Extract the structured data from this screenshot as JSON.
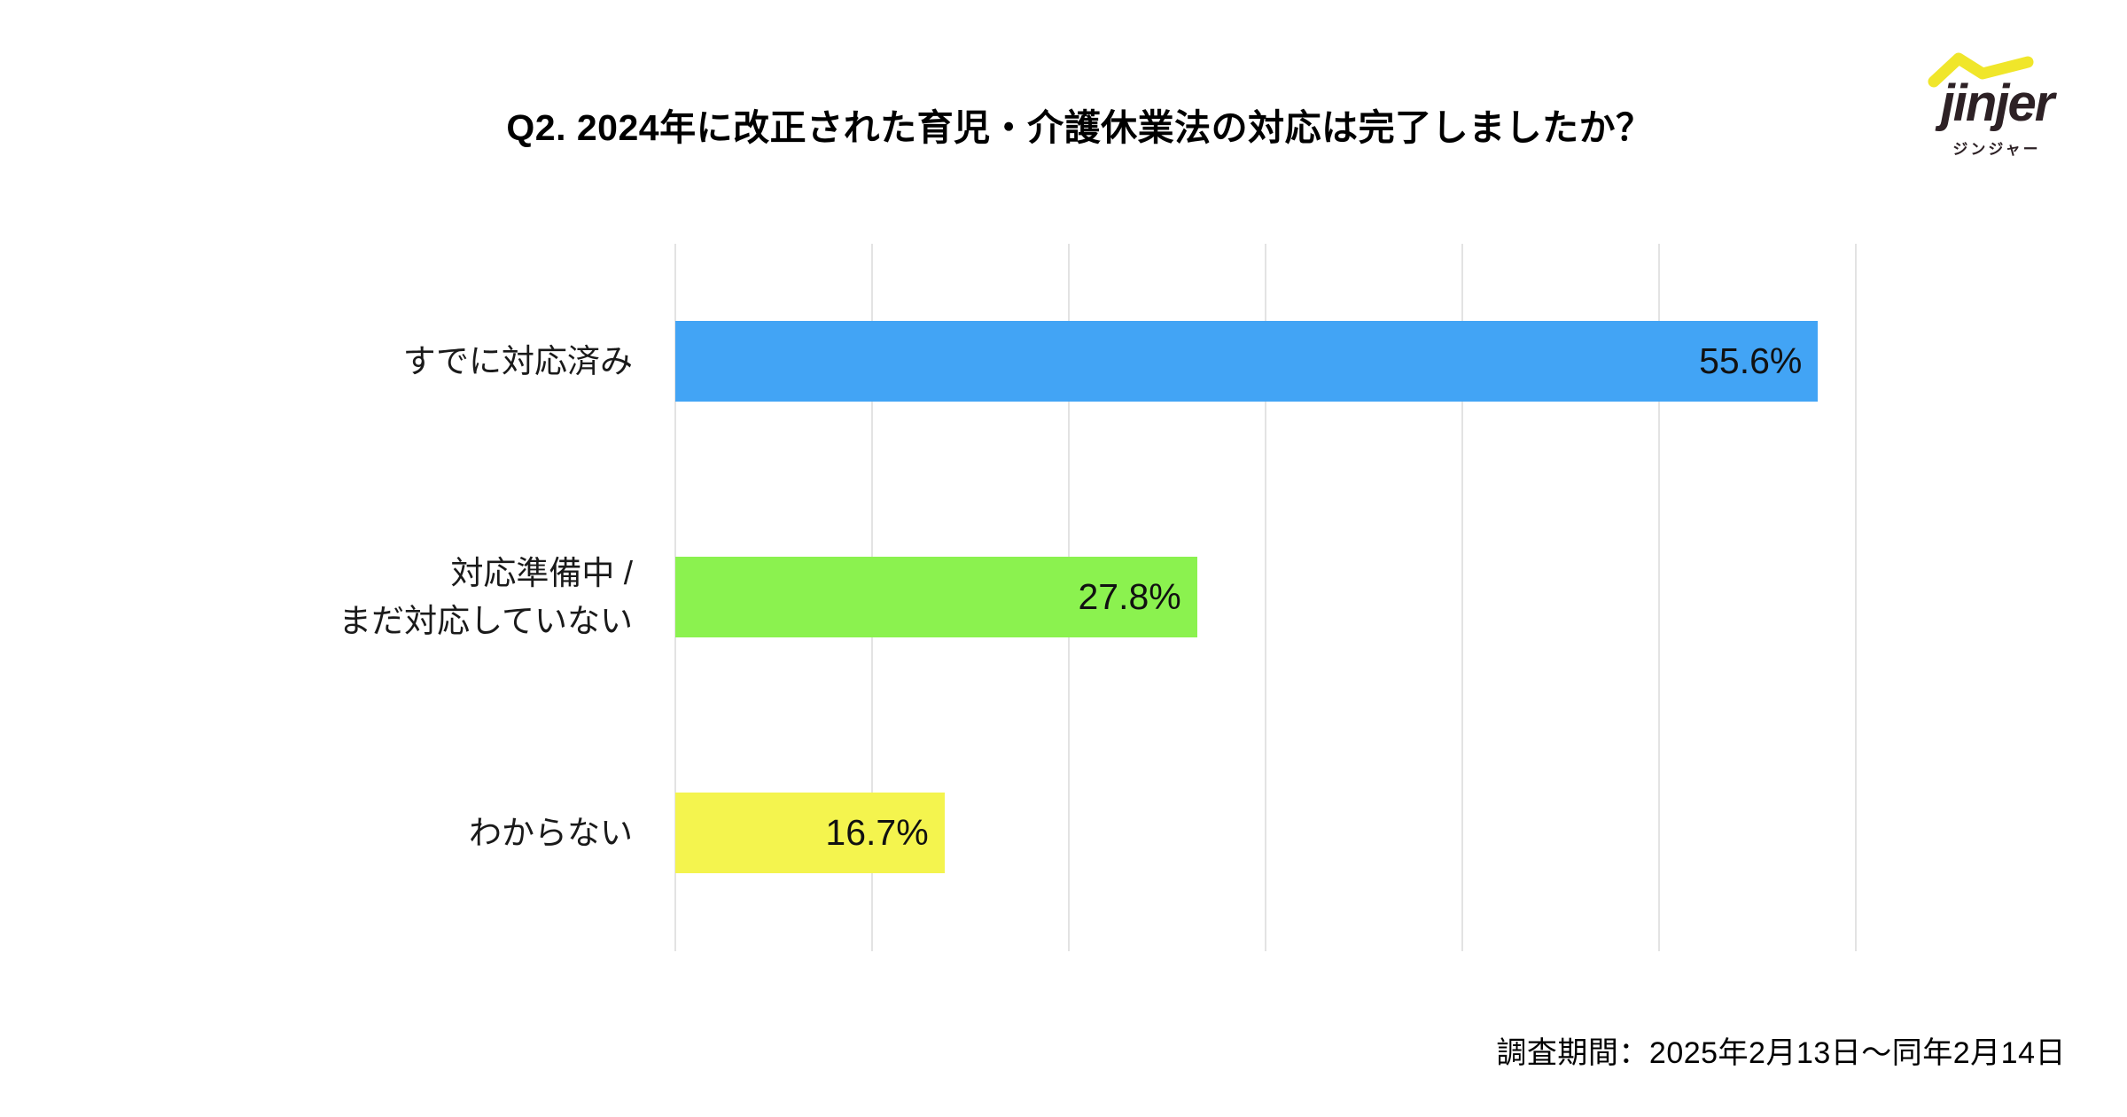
{
  "title": "Q2. 2024年に改正された育児・介護休業法の対応は完了しましたか？",
  "logo": {
    "wordmark": "jinjer",
    "subtitle": "ジンジャー",
    "wordmark_color": "#2d2125",
    "swoosh_color": "#f0e62a"
  },
  "footer": {
    "survey_period": "調査期間：2025年2月13日〜同年2月14日"
  },
  "chart_data": {
    "type": "bar",
    "orientation": "horizontal",
    "title": "Q2. 2024年に改正された育児・介護休業法の対応は完了しましたか？",
    "categories": [
      "すでに対応済み",
      "対応準備中 /\nまだ対応していない",
      "わからない"
    ],
    "values": [
      55.6,
      27.8,
      16.7
    ],
    "value_labels": [
      "55.6%",
      "27.8%",
      "16.7%"
    ],
    "colors": [
      "#42a4f5",
      "#8bf24f",
      "#f4f44e"
    ],
    "value_label_position": "inside-end",
    "xlim": [
      0,
      60
    ],
    "grid": true,
    "gridline_count": 7,
    "grid_color": "#e3e3e3",
    "legend": false,
    "xlabel": "",
    "ylabel": "",
    "bar_width_fractions": [
      0.968,
      0.442,
      0.228
    ]
  }
}
